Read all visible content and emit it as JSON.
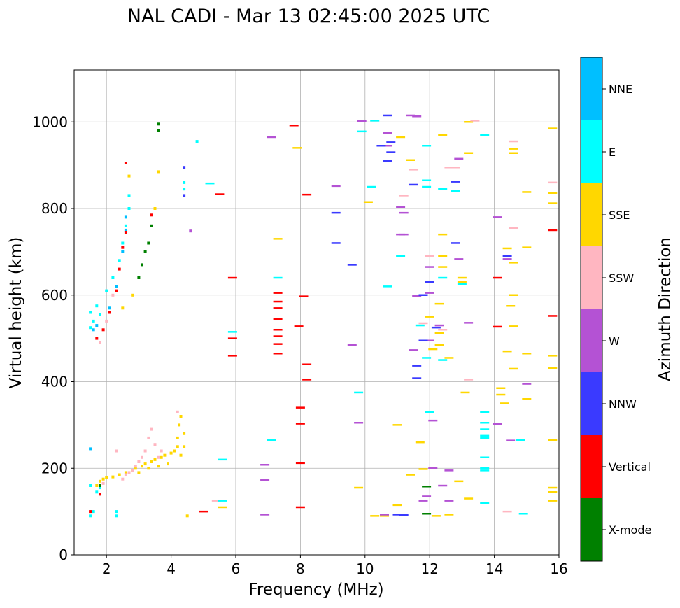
{
  "chart_data": {
    "type": "scatter",
    "title": "NAL CADI - Mar 13 02:45:00 2025 UTC",
    "xlabel": "Frequency (MHz)",
    "ylabel": "Virtual height (km)",
    "xlim": [
      1,
      16
    ],
    "ylim": [
      0,
      1120
    ],
    "xticks": [
      2,
      4,
      6,
      8,
      10,
      12,
      14,
      16
    ],
    "yticks": [
      0,
      200,
      400,
      600,
      800,
      1000
    ],
    "grid": true,
    "colorbar": {
      "label": "Azimuth Direction",
      "position": "right",
      "categories": [
        "X-mode",
        "Vertical",
        "NNW",
        "W",
        "SSW",
        "SSE",
        "E",
        "NNE"
      ],
      "colors": [
        "#008000",
        "#ff0000",
        "#3a3aff",
        "#b452d4",
        "#ffb6c1",
        "#ffd700",
        "#00ffff",
        "#00bfff"
      ]
    },
    "series": [
      {
        "name": "SSE",
        "points": [
          [
            1.7,
            160
          ],
          [
            1.8,
            170
          ],
          [
            1.9,
            175
          ],
          [
            2.0,
            178
          ],
          [
            2.2,
            180
          ],
          [
            2.4,
            185
          ],
          [
            2.6,
            190
          ],
          [
            2.8,
            195
          ],
          [
            2.9,
            200
          ],
          [
            3.0,
            190
          ],
          [
            3.1,
            205
          ],
          [
            3.2,
            210
          ],
          [
            3.3,
            200
          ],
          [
            3.4,
            215
          ],
          [
            3.5,
            220
          ],
          [
            3.6,
            205
          ],
          [
            3.7,
            225
          ],
          [
            3.8,
            230
          ],
          [
            3.9,
            210
          ],
          [
            4.0,
            235
          ],
          [
            4.1,
            240
          ],
          [
            4.2,
            250
          ],
          [
            4.2,
            270
          ],
          [
            4.25,
            300
          ],
          [
            4.3,
            320
          ],
          [
            4.3,
            230
          ],
          [
            4.4,
            250
          ],
          [
            4.4,
            280
          ],
          [
            2.5,
            570
          ],
          [
            2.8,
            600
          ],
          [
            3.5,
            800
          ],
          [
            3.6,
            885
          ],
          [
            2.7,
            875
          ],
          [
            4.5,
            90
          ],
          [
            5.6,
            110
          ],
          [
            7.3,
            730
          ],
          [
            7.9,
            940
          ],
          [
            9.8,
            155
          ],
          [
            10.1,
            815
          ],
          [
            10.3,
            90
          ],
          [
            10.6,
            90
          ],
          [
            11.0,
            115
          ],
          [
            11.0,
            300
          ],
          [
            11.1,
            965
          ],
          [
            11.4,
            185
          ],
          [
            11.4,
            912
          ],
          [
            11.7,
            260
          ],
          [
            11.8,
            198
          ],
          [
            12.0,
            550
          ],
          [
            12.1,
            475
          ],
          [
            12.2,
            90
          ],
          [
            12.3,
            485
          ],
          [
            12.3,
            512
          ],
          [
            12.3,
            580
          ],
          [
            12.4,
            665
          ],
          [
            12.4,
            690
          ],
          [
            12.4,
            740
          ],
          [
            12.4,
            970
          ],
          [
            12.6,
            455
          ],
          [
            12.6,
            93
          ],
          [
            12.9,
            170
          ],
          [
            13.0,
            630
          ],
          [
            13.0,
            640
          ],
          [
            13.1,
            375
          ],
          [
            13.2,
            130
          ],
          [
            13.2,
            928
          ],
          [
            13.2,
            1000
          ],
          [
            14.2,
            385
          ],
          [
            14.2,
            370
          ],
          [
            14.3,
            350
          ],
          [
            14.4,
            470
          ],
          [
            14.4,
            708
          ],
          [
            14.5,
            575
          ],
          [
            14.6,
            528
          ],
          [
            14.6,
            675
          ],
          [
            14.6,
            600
          ],
          [
            14.6,
            430
          ],
          [
            14.6,
            928
          ],
          [
            14.6,
            938
          ],
          [
            15.0,
            465
          ],
          [
            15.0,
            838
          ],
          [
            15.0,
            710
          ],
          [
            15.0,
            360
          ],
          [
            15.8,
            985
          ],
          [
            15.8,
            812
          ],
          [
            15.8,
            836
          ],
          [
            15.8,
            432
          ],
          [
            15.8,
            460
          ],
          [
            15.8,
            265
          ],
          [
            15.8,
            155
          ],
          [
            15.8,
            145
          ],
          [
            15.8,
            125
          ]
        ]
      },
      {
        "name": "SSW",
        "points": [
          [
            1.9,
            165
          ],
          [
            2.5,
            175
          ],
          [
            2.6,
            185
          ],
          [
            2.7,
            190
          ],
          [
            2.8,
            195
          ],
          [
            2.9,
            205
          ],
          [
            3.0,
            215
          ],
          [
            3.1,
            225
          ],
          [
            3.2,
            240
          ],
          [
            3.3,
            270
          ],
          [
            3.4,
            290
          ],
          [
            3.5,
            255
          ],
          [
            3.6,
            225
          ],
          [
            3.7,
            240
          ],
          [
            4.2,
            330
          ],
          [
            2.3,
            240
          ],
          [
            1.8,
            490
          ],
          [
            2.0,
            540
          ],
          [
            2.2,
            600
          ],
          [
            5.4,
            125
          ],
          [
            11.2,
            830
          ],
          [
            11.5,
            890
          ],
          [
            11.8,
            535
          ],
          [
            12.0,
            690
          ],
          [
            12.4,
            520
          ],
          [
            12.6,
            895
          ],
          [
            12.8,
            895
          ],
          [
            13.2,
            405
          ],
          [
            13.4,
            1003
          ],
          [
            14.6,
            755
          ],
          [
            14.6,
            955
          ],
          [
            14.4,
            100
          ],
          [
            15.8,
            860
          ]
        ]
      },
      {
        "name": "E",
        "points": [
          [
            1.5,
            90
          ],
          [
            1.5,
            160
          ],
          [
            1.6,
            100
          ],
          [
            1.7,
            145
          ],
          [
            1.8,
            155
          ],
          [
            2.3,
            90
          ],
          [
            2.3,
            100
          ],
          [
            1.5,
            525
          ],
          [
            1.5,
            560
          ],
          [
            1.6,
            540
          ],
          [
            1.7,
            575
          ],
          [
            1.8,
            555
          ],
          [
            2.0,
            610
          ],
          [
            2.2,
            640
          ],
          [
            2.4,
            680
          ],
          [
            2.5,
            720
          ],
          [
            2.6,
            760
          ],
          [
            2.7,
            800
          ],
          [
            2.7,
            830
          ],
          [
            4.4,
            860
          ],
          [
            4.4,
            845
          ],
          [
            4.8,
            955
          ],
          [
            5.6,
            125
          ],
          [
            5.6,
            220
          ],
          [
            5.9,
            515
          ],
          [
            7.3,
            640
          ],
          [
            9.8,
            375
          ],
          [
            9.9,
            978
          ],
          [
            10.2,
            850
          ],
          [
            10.3,
            1003
          ],
          [
            10.7,
            620
          ],
          [
            11.1,
            690
          ],
          [
            11.7,
            530
          ],
          [
            11.9,
            865
          ],
          [
            11.9,
            850
          ],
          [
            11.9,
            945
          ],
          [
            11.9,
            455
          ],
          [
            12.0,
            330
          ],
          [
            12.4,
            640
          ],
          [
            12.4,
            450
          ],
          [
            12.4,
            845
          ],
          [
            12.8,
            840
          ],
          [
            13.0,
            625
          ],
          [
            13.7,
            970
          ],
          [
            13.7,
            330
          ],
          [
            13.7,
            305
          ],
          [
            13.7,
            290
          ],
          [
            13.7,
            275
          ],
          [
            13.7,
            270
          ],
          [
            13.7,
            225
          ],
          [
            13.7,
            200
          ],
          [
            13.7,
            195
          ],
          [
            13.7,
            120
          ],
          [
            14.8,
            265
          ],
          [
            14.9,
            95
          ],
          [
            7.1,
            265
          ],
          [
            5.2,
            858
          ]
        ]
      },
      {
        "name": "NNE",
        "points": [
          [
            1.5,
            245
          ],
          [
            1.6,
            520
          ],
          [
            1.7,
            530
          ],
          [
            2.1,
            570
          ],
          [
            2.3,
            620
          ],
          [
            2.5,
            700
          ],
          [
            2.6,
            750
          ],
          [
            2.6,
            780
          ]
        ]
      },
      {
        "name": "Vertical",
        "points": [
          [
            1.5,
            100
          ],
          [
            1.8,
            140
          ],
          [
            1.7,
            500
          ],
          [
            1.9,
            520
          ],
          [
            2.1,
            560
          ],
          [
            2.3,
            610
          ],
          [
            2.4,
            660
          ],
          [
            2.5,
            710
          ],
          [
            2.6,
            745
          ],
          [
            2.6,
            905
          ],
          [
            3.4,
            785
          ],
          [
            5.0,
            100
          ],
          [
            5.5,
            833
          ],
          [
            5.9,
            640
          ],
          [
            5.9,
            500
          ],
          [
            5.9,
            460
          ],
          [
            7.3,
            605
          ],
          [
            7.3,
            585
          ],
          [
            7.3,
            570
          ],
          [
            7.3,
            545
          ],
          [
            7.3,
            520
          ],
          [
            7.3,
            505
          ],
          [
            7.3,
            487
          ],
          [
            7.3,
            465
          ],
          [
            7.8,
            992
          ],
          [
            7.95,
            528
          ],
          [
            8.0,
            340
          ],
          [
            8.0,
            303
          ],
          [
            8.0,
            212
          ],
          [
            8.0,
            110
          ],
          [
            8.1,
            597
          ],
          [
            8.2,
            832
          ],
          [
            8.2,
            440
          ],
          [
            8.2,
            405
          ],
          [
            14.1,
            527
          ],
          [
            14.1,
            640
          ],
          [
            15.8,
            750
          ],
          [
            15.8,
            552
          ]
        ]
      },
      {
        "name": "X-mode",
        "points": [
          [
            1.8,
            160
          ],
          [
            3.0,
            640
          ],
          [
            3.1,
            670
          ],
          [
            3.2,
            700
          ],
          [
            3.3,
            720
          ],
          [
            3.4,
            760
          ],
          [
            3.6,
            980
          ],
          [
            3.6,
            995
          ],
          [
            11.9,
            158
          ],
          [
            11.9,
            95
          ]
        ]
      },
      {
        "name": "W",
        "points": [
          [
            4.6,
            748
          ],
          [
            6.9,
            93
          ],
          [
            6.9,
            173
          ],
          [
            6.9,
            208
          ],
          [
            7.1,
            965
          ],
          [
            9.1,
            852
          ],
          [
            9.6,
            485
          ],
          [
            9.8,
            305
          ],
          [
            9.9,
            1002
          ],
          [
            10.6,
            93
          ],
          [
            10.7,
            945
          ],
          [
            10.7,
            975
          ],
          [
            11.1,
            740
          ],
          [
            11.1,
            803
          ],
          [
            11.2,
            790
          ],
          [
            11.2,
            740
          ],
          [
            11.4,
            1015
          ],
          [
            11.5,
            473
          ],
          [
            11.6,
            598
          ],
          [
            11.6,
            1013
          ],
          [
            11.8,
            125
          ],
          [
            11.9,
            135
          ],
          [
            12.0,
            605
          ],
          [
            12.0,
            665
          ],
          [
            12.0,
            495
          ],
          [
            12.1,
            310
          ],
          [
            12.1,
            200
          ],
          [
            12.3,
            530
          ],
          [
            12.4,
            160
          ],
          [
            12.6,
            195
          ],
          [
            12.6,
            125
          ],
          [
            12.9,
            915
          ],
          [
            12.9,
            683
          ],
          [
            13.2,
            536
          ],
          [
            14.1,
            780
          ],
          [
            14.1,
            302
          ],
          [
            14.4,
            683
          ],
          [
            14.5,
            264
          ],
          [
            15.0,
            395
          ]
        ]
      },
      {
        "name": "NNW",
        "points": [
          [
            4.4,
            895
          ],
          [
            4.4,
            830
          ],
          [
            9.1,
            790
          ],
          [
            9.1,
            720
          ],
          [
            9.6,
            670
          ],
          [
            10.5,
            945
          ],
          [
            10.7,
            910
          ],
          [
            10.7,
            1015
          ],
          [
            10.8,
            953
          ],
          [
            10.8,
            930
          ],
          [
            11.0,
            93
          ],
          [
            11.2,
            92
          ],
          [
            11.5,
            855
          ],
          [
            11.6,
            408
          ],
          [
            11.6,
            437
          ],
          [
            11.8,
            495
          ],
          [
            11.8,
            600
          ],
          [
            12.0,
            630
          ],
          [
            12.2,
            525
          ],
          [
            12.8,
            720
          ],
          [
            12.8,
            862
          ],
          [
            14.4,
            690
          ]
        ]
      }
    ]
  }
}
